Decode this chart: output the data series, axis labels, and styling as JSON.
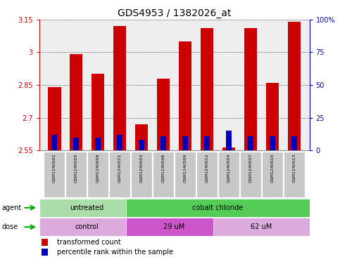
{
  "title": "GDS4953 / 1382026_at",
  "samples": [
    "GSM1240502",
    "GSM1240505",
    "GSM1240508",
    "GSM1240511",
    "GSM1240503",
    "GSM1240506",
    "GSM1240509",
    "GSM1240512",
    "GSM1240504",
    "GSM1240507",
    "GSM1240510",
    "GSM1240513"
  ],
  "red_values": [
    2.84,
    2.99,
    2.9,
    3.12,
    2.67,
    2.88,
    3.05,
    3.11,
    2.565,
    3.11,
    2.86,
    3.14
  ],
  "blue_percentile": [
    12,
    10,
    10,
    12,
    8,
    11,
    11,
    11,
    15,
    11,
    11,
    11
  ],
  "ymin": 2.55,
  "ymax": 3.15,
  "yticks": [
    2.55,
    2.7,
    2.85,
    3.0,
    3.15
  ],
  "ytick_labels": [
    "2.55",
    "2.7",
    "2.85",
    "3",
    "3.15"
  ],
  "right_yticks": [
    0,
    25,
    50,
    75,
    100
  ],
  "right_ytick_labels": [
    "0",
    "25",
    "50",
    "75",
    "100%"
  ],
  "agent_groups": [
    {
      "label": "untreated",
      "start": 0,
      "end": 4,
      "color": "#aaddaa"
    },
    {
      "label": "cobalt chloride",
      "start": 4,
      "end": 12,
      "color": "#55cc55"
    }
  ],
  "dose_groups": [
    {
      "label": "control",
      "start": 0,
      "end": 4,
      "color": "#ddaadd"
    },
    {
      "label": "29 uM",
      "start": 4,
      "end": 8,
      "color": "#cc55cc"
    },
    {
      "label": "62 uM",
      "start": 8,
      "end": 12,
      "color": "#ddaadd"
    }
  ],
  "bar_color_red": "#CC0000",
  "bar_color_blue": "#0000BB",
  "bar_width": 0.6,
  "background_color": "#FFFFFF",
  "plot_bg_color": "#EEEEEE",
  "left_axis_color": "#CC0000",
  "right_axis_color": "#0000BB",
  "grid_color": "#000000",
  "label_fontsize": 7,
  "tick_fontsize": 7,
  "title_fontsize": 10
}
